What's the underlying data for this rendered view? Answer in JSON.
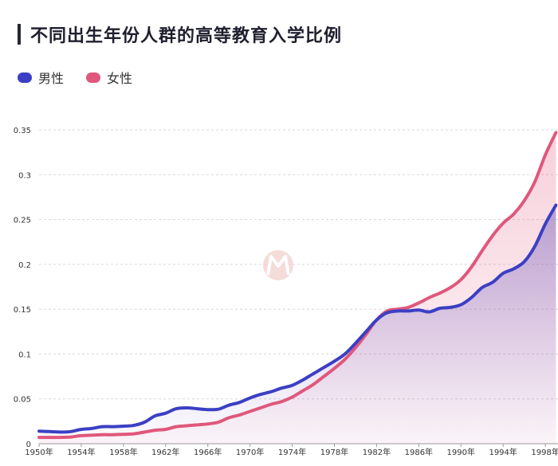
{
  "chart_data": {
    "type": "area",
    "title": "不同出生年份人群的高等教育入学比例",
    "x_ticks": [
      "1950年",
      "1954年",
      "1958年",
      "1962年",
      "1966年",
      "1970年",
      "1974年",
      "1978年",
      "1982年",
      "1986年",
      "1990年",
      "1994年",
      "1998年"
    ],
    "y_ticks": [
      "0",
      "0.05",
      "0.1",
      "0.15",
      "0.2",
      "0.25",
      "0.3",
      "0.35"
    ],
    "ylim": [
      0,
      0.35
    ],
    "xlim": [
      1950,
      1999.2
    ],
    "legend_position": "top-left",
    "x": [
      1950,
      1951,
      1952,
      1953,
      1954,
      1955,
      1956,
      1957,
      1958,
      1959,
      1960,
      1961,
      1962,
      1963,
      1964,
      1965,
      1966,
      1967,
      1968,
      1969,
      1970,
      1971,
      1972,
      1973,
      1974,
      1975,
      1976,
      1977,
      1978,
      1979,
      1980,
      1981,
      1982,
      1983,
      1984,
      1985,
      1986,
      1987,
      1988,
      1989,
      1990,
      1991,
      1992,
      1993,
      1994,
      1995,
      1996,
      1997,
      1998,
      1999
    ],
    "series": [
      {
        "name": "男性",
        "color": "#3b3fc4",
        "values": [
          0.014,
          0.0135,
          0.013,
          0.0135,
          0.016,
          0.017,
          0.019,
          0.019,
          0.0195,
          0.0205,
          0.024,
          0.031,
          0.034,
          0.039,
          0.04,
          0.039,
          0.038,
          0.0385,
          0.043,
          0.046,
          0.051,
          0.055,
          0.058,
          0.062,
          0.065,
          0.071,
          0.078,
          0.085,
          0.092,
          0.1,
          0.112,
          0.125,
          0.138,
          0.146,
          0.148,
          0.148,
          0.149,
          0.147,
          0.151,
          0.152,
          0.155,
          0.163,
          0.174,
          0.18,
          0.19,
          0.195,
          0.203,
          0.22,
          0.245,
          0.266
        ]
      },
      {
        "name": "女性",
        "color": "#e0577c",
        "values": [
          0.007,
          0.007,
          0.007,
          0.0075,
          0.009,
          0.0095,
          0.01,
          0.01,
          0.0105,
          0.011,
          0.013,
          0.015,
          0.016,
          0.019,
          0.02,
          0.021,
          0.022,
          0.024,
          0.029,
          0.032,
          0.036,
          0.04,
          0.044,
          0.047,
          0.052,
          0.059,
          0.066,
          0.075,
          0.084,
          0.094,
          0.107,
          0.122,
          0.138,
          0.148,
          0.15,
          0.152,
          0.157,
          0.163,
          0.168,
          0.174,
          0.183,
          0.197,
          0.215,
          0.232,
          0.246,
          0.256,
          0.271,
          0.292,
          0.322,
          0.347
        ]
      }
    ]
  }
}
